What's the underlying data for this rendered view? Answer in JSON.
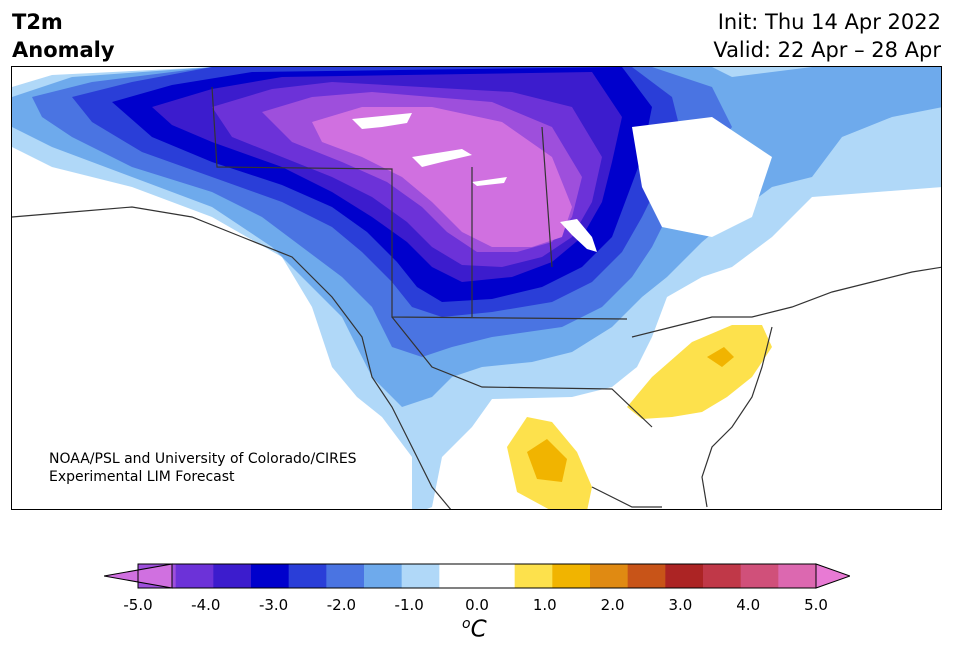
{
  "header": {
    "title_line1": "T2m",
    "title_line2": "Anomaly",
    "init": "Init: Thu 14 Apr 2022",
    "valid": "Valid: 22 Apr – 28 Apr"
  },
  "credit": {
    "line1": "NOAA/PSL and University of Colorado/CIRES",
    "line2": "Experimental LIM Forecast"
  },
  "colorbar": {
    "colors": [
      "#d070e0",
      "#9e4fdc",
      "#6c32d8",
      "#3c1ccd",
      "#0000cc",
      "#2a3ed8",
      "#4a74e2",
      "#6eaaec",
      "#b0d8f8",
      "#ffffff",
      "#ffffff",
      "#fde14c",
      "#f1b400",
      "#e08a12",
      "#c85418",
      "#ac2424",
      "#c03848",
      "#d0507a",
      "#dc68b0",
      "#e87ad4"
    ],
    "ticks": [
      "-5.0",
      "-4.0",
      "-3.0",
      "-2.0",
      "-1.0",
      "0.0",
      "1.0",
      "2.0",
      "3.0",
      "4.0",
      "5.0"
    ],
    "unit_sup": "o",
    "unit": "C"
  }
}
